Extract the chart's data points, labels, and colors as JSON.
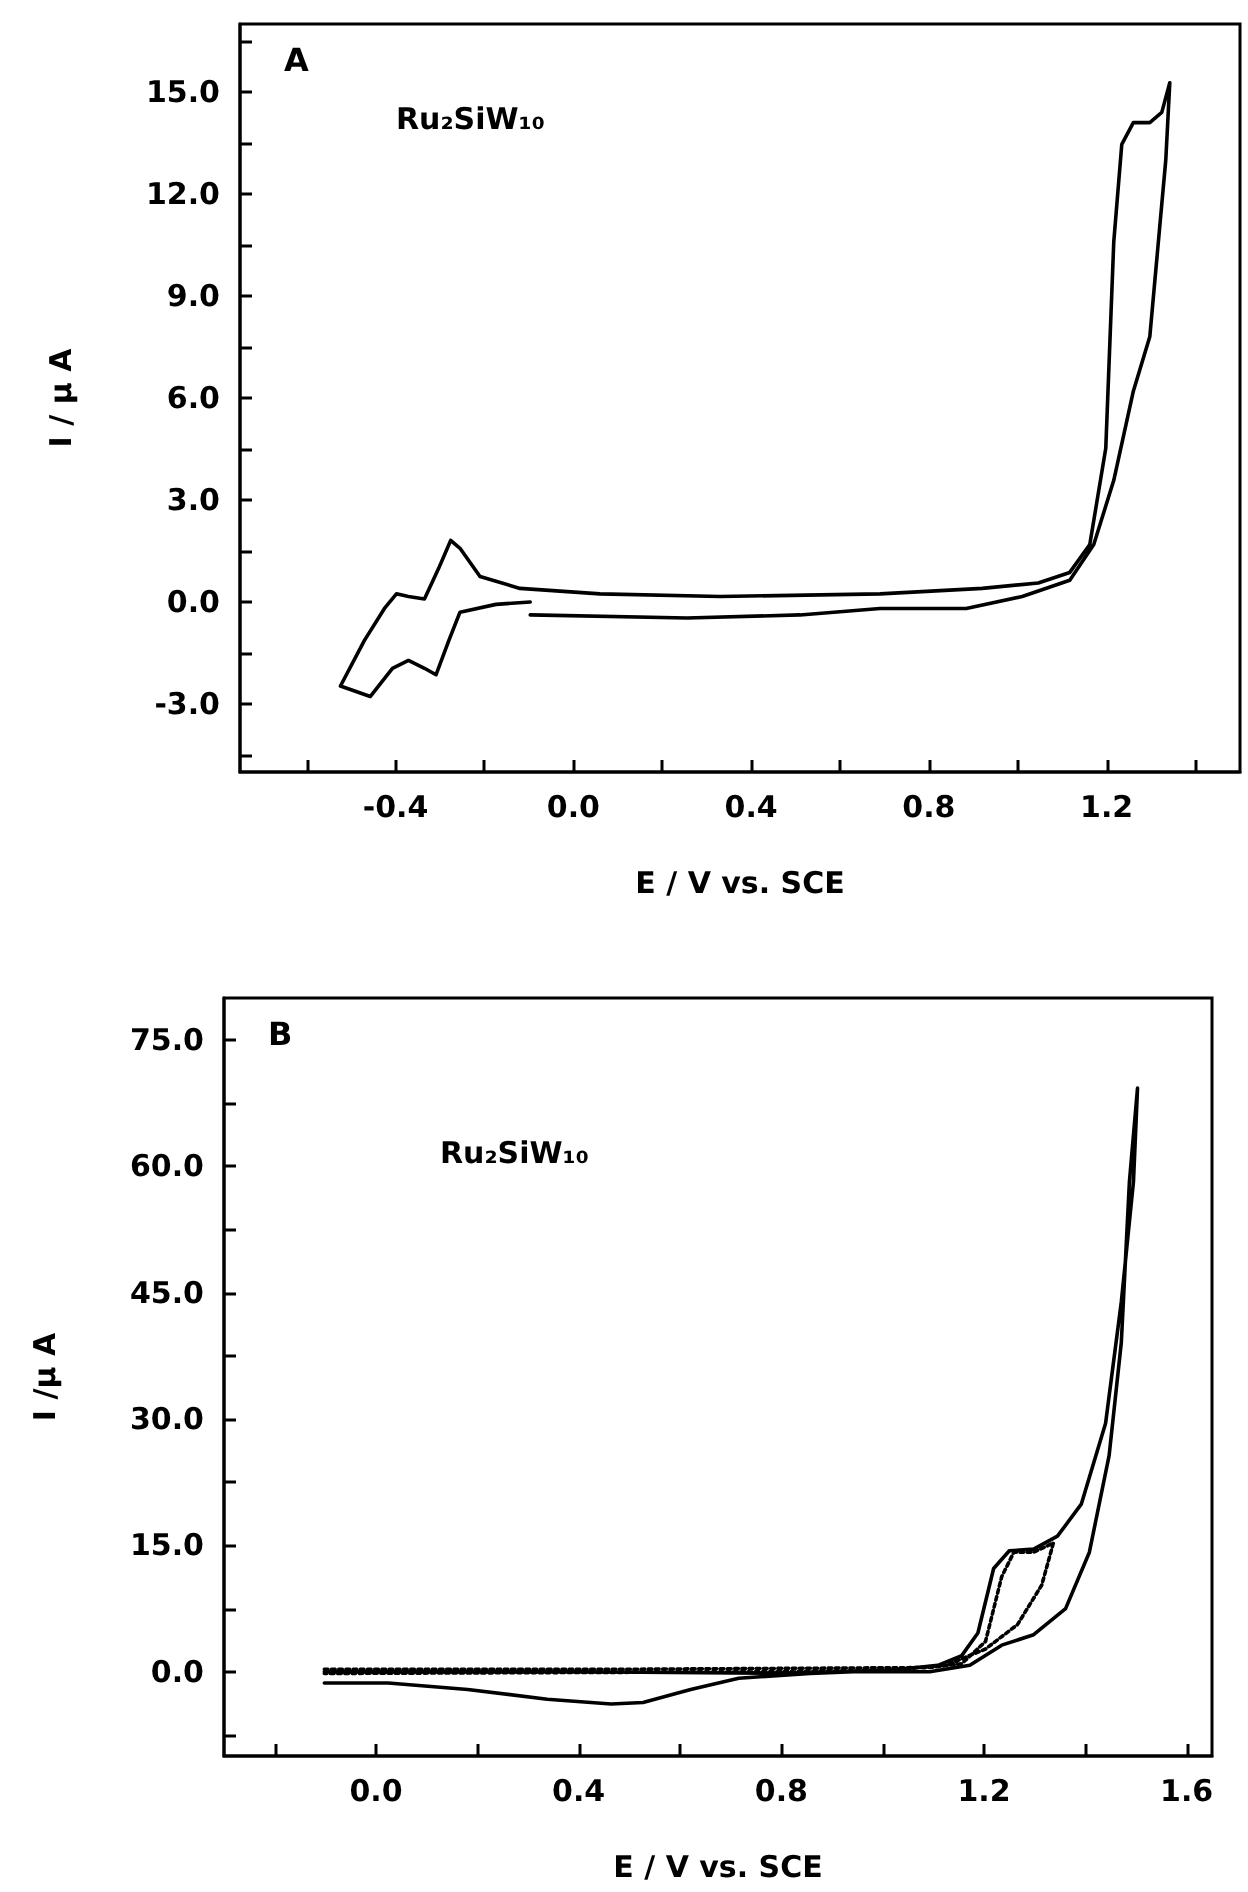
{
  "chart_data": [
    {
      "type": "line",
      "xlabel": "E / V vs. SCE",
      "ylabel": "I / μ A",
      "annotations": [
        "A",
        "Ru₂SiW₁₀"
      ],
      "marker": "none",
      "line_style": "solid",
      "xlim": [
        -0.75,
        1.5
      ],
      "ylim": [
        -5,
        17
      ],
      "xticks": [
        {
          "value": -0.6,
          "label": null
        },
        {
          "value": -0.4,
          "label": "-0.4"
        },
        {
          "value": -0.2,
          "label": null
        },
        {
          "value": 0,
          "label": "0.0"
        },
        {
          "value": 0.2,
          "label": null
        },
        {
          "value": 0.4,
          "label": "0.4"
        },
        {
          "value": 0.6,
          "label": null
        },
        {
          "value": 0.8,
          "label": "0.8"
        },
        {
          "value": 1.0,
          "label": null
        },
        {
          "value": 1.2,
          "label": "1.2"
        },
        {
          "value": 1.4,
          "label": null
        }
      ],
      "yticks": [
        {
          "value": -4.5,
          "label": null
        },
        {
          "value": -3,
          "label": "-3.0"
        },
        {
          "value": -1.5,
          "label": null
        },
        {
          "value": 0,
          "label": "0.0"
        },
        {
          "value": 1.5,
          "label": null
        },
        {
          "value": 3,
          "label": "3.0"
        },
        {
          "value": 4.5,
          "label": null
        },
        {
          "value": 6,
          "label": "6.0"
        },
        {
          "value": 7.5,
          "label": null
        },
        {
          "value": 9,
          "label": "9.0"
        },
        {
          "value": 10.5,
          "label": null
        },
        {
          "value": 12,
          "label": "12.0"
        },
        {
          "value": 13.5,
          "label": null
        },
        {
          "value": 15,
          "label": "15.0"
        },
        {
          "value": 16.5,
          "label": null
        }
      ],
      "series": [
        {
          "color": "#000000",
          "x": [
            -0.097,
            -0.174,
            -0.255,
            -0.28,
            -0.309,
            -0.335,
            -0.371,
            -0.407,
            -0.457,
            -0.524,
            -0.47,
            -0.425,
            -0.398,
            -0.371,
            -0.335,
            -0.303,
            -0.276,
            -0.255,
            -0.21,
            -0.12,
            0.06,
            0.33,
            0.69,
            0.92,
            1.046,
            1.117,
            1.162,
            1.198,
            1.216,
            1.234,
            1.26,
            1.297,
            1.324,
            1.342,
            1.333,
            1.297,
            1.26,
            1.216,
            1.171,
            1.117,
            1.01,
            0.884,
            0.69,
            0.51,
            0.256,
            -0.097
          ],
          "values": [
            0,
            -0.07,
            -0.3,
            -1.13,
            -2.14,
            -1.95,
            -1.72,
            -1.95,
            -2.78,
            -2.47,
            -1.13,
            -0.19,
            0.24,
            0.16,
            0.09,
            0.99,
            1.81,
            1.58,
            0.75,
            0.4,
            0.24,
            0.16,
            0.24,
            0.4,
            0.56,
            0.87,
            1.69,
            4.52,
            10.6,
            13.46,
            14.1,
            14.1,
            14.4,
            15.27,
            13.0,
            7.8,
            6.2,
            3.58,
            1.69,
            0.64,
            0.16,
            -0.19,
            -0.19,
            -0.38,
            -0.47,
            -0.38
          ]
        }
      ]
    },
    {
      "type": "line",
      "xlabel": "E / V vs. SCE",
      "ylabel": "I /μ A",
      "annotations": [
        "B",
        "Ru₂SiW₁₀"
      ],
      "marker": "none",
      "xlim": [
        -0.3,
        1.65
      ],
      "ylim": [
        -10,
        80
      ],
      "xticks": [
        {
          "value": -0.2,
          "label": null
        },
        {
          "value": 0,
          "label": "0.0"
        },
        {
          "value": 0.2,
          "label": null
        },
        {
          "value": 0.4,
          "label": "0.4"
        },
        {
          "value": 0.6,
          "label": null
        },
        {
          "value": 0.8,
          "label": "0.8"
        },
        {
          "value": 1.0,
          "label": null
        },
        {
          "value": 1.2,
          "label": "1.2"
        },
        {
          "value": 1.4,
          "label": null
        },
        {
          "value": 1.6,
          "label": "1.6"
        }
      ],
      "yticks": [
        {
          "value": -7.5,
          "label": null
        },
        {
          "value": 0,
          "label": "0.0"
        },
        {
          "value": 7.5,
          "label": null
        },
        {
          "value": 15,
          "label": "15.0"
        },
        {
          "value": 22.5,
          "label": null
        },
        {
          "value": 30,
          "label": "30.0"
        },
        {
          "value": 37.5,
          "label": null
        },
        {
          "value": 45,
          "label": "45.0"
        },
        {
          "value": 52.5,
          "label": null
        },
        {
          "value": 60,
          "label": "60.0"
        },
        {
          "value": 67.5,
          "label": null
        },
        {
          "value": 75,
          "label": "75.0"
        }
      ],
      "series": [
        {
          "color": "#000000",
          "line_style": "solid",
          "x": [
            -0.102,
            0.024,
            0.181,
            0.338,
            0.464,
            0.527,
            0.621,
            0.716,
            0.857,
            1.015,
            1.109,
            1.156,
            1.188,
            1.219,
            1.25,
            1.298,
            1.345,
            1.392,
            1.44,
            1.471,
            1.495,
            1.503,
            1.487,
            1.471,
            1.447,
            1.408,
            1.361,
            1.298,
            1.235,
            1.172,
            1.093,
            0.936,
            0.8,
            0.4,
            0.0,
            -0.102
          ],
          "values": [
            -1.34,
            -1.34,
            -2.1,
            -3.26,
            -3.83,
            -3.64,
            -2.1,
            -0.77,
            -0.19,
            0.19,
            0.77,
            1.92,
            4.6,
            12.26,
            14.37,
            14.56,
            16.1,
            19.9,
            29.5,
            43.9,
            58.2,
            69.3,
            58.2,
            39.1,
            25.7,
            14.2,
            7.5,
            4.4,
            3.16,
            0.77,
            0,
            0,
            -0.19,
            0,
            0,
            0
          ]
        },
        {
          "color": "#000000",
          "line_style": "dotted",
          "x": [
            -0.102,
            0.5,
            1.093,
            1.156,
            1.203,
            1.235,
            1.259,
            1.298,
            1.337,
            1.314,
            1.266,
            1.203,
            1.125,
            1.015,
            0.779,
            -0.102
          ],
          "values": [
            0.3,
            0.3,
            0.5,
            0.96,
            3.6,
            11.3,
            14.2,
            14.2,
            15.3,
            10.3,
            5.6,
            2.7,
            0.77,
            0.19,
            0,
            -0.2
          ]
        }
      ]
    }
  ]
}
